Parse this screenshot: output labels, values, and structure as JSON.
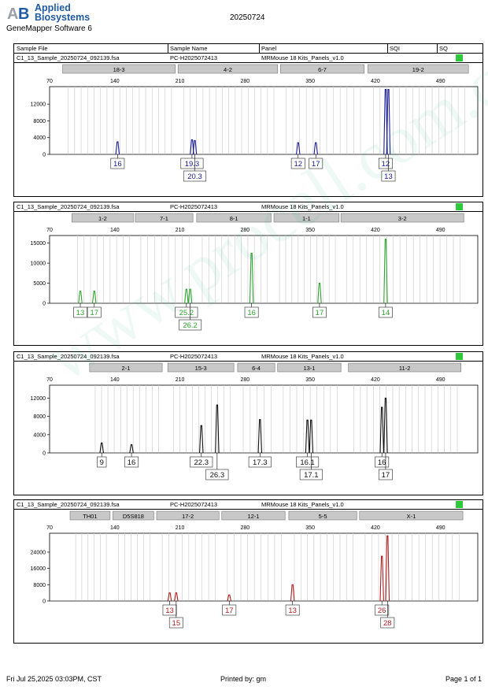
{
  "header": {
    "brand_line1": "Applied",
    "brand_line2": "Biosystems",
    "software": "GeneMapper Software 6",
    "date": "20250724",
    "columns": [
      "Sample File",
      "Sample Name",
      "Panel",
      "SQI",
      "SQ"
    ]
  },
  "footer": {
    "printed_at": "Fri Jul 25,2025 03:03PM, CST",
    "printed_by": "Printed by: gm",
    "page": "Page 1 of 1"
  },
  "watermark": "www.procell.com.cn",
  "panels": [
    {
      "sample_file": "C1_13_Sample_20250724_092139.fsa",
      "sample_name": "PC-H2025072413",
      "panel": "MRMouse 18 Kits_Panels_v1.0",
      "sq_color": "#2ec83a",
      "dye_color": "#1a1a9a",
      "markers": [
        {
          "name": "18-3",
          "start": 84,
          "end": 205
        },
        {
          "name": "4-2",
          "start": 208,
          "end": 315
        },
        {
          "name": "6-7",
          "start": 318,
          "end": 408
        },
        {
          "name": "19-2",
          "start": 412,
          "end": 520
        }
      ],
      "alleles": [
        {
          "label": "16",
          "x": 143,
          "height": 3000,
          "row": 0
        },
        {
          "label": "19.3",
          "x": 223,
          "height": 3500,
          "row": 0
        },
        {
          "label": "20.3",
          "x": 226,
          "height": 3300,
          "row": 1
        },
        {
          "label": "12",
          "x": 337,
          "height": 2800,
          "row": 0
        },
        {
          "label": "17",
          "x": 356,
          "height": 2800,
          "row": 0
        },
        {
          "label": "12",
          "x": 431,
          "height": 15500,
          "row": 0
        },
        {
          "label": "13",
          "x": 434,
          "height": 15500,
          "row": 1
        }
      ]
    },
    {
      "sample_file": "C1_13_Sample_20250724_092139.fsa",
      "sample_name": "PC-H2025072413",
      "panel": "MRMouse 18 Kits_Panels_v1.0",
      "sq_color": "#2ec83a",
      "dye_color": "#2ea32e",
      "markers": [
        {
          "name": "1-2",
          "start": 94,
          "end": 160
        },
        {
          "name": "7-1",
          "start": 162,
          "end": 224
        },
        {
          "name": "8-1",
          "start": 228,
          "end": 308
        },
        {
          "name": "1-1",
          "start": 311,
          "end": 381
        },
        {
          "name": "3-2",
          "start": 383,
          "end": 515
        }
      ],
      "alleles": [
        {
          "label": "13",
          "x": 103,
          "height": 3000,
          "row": 0
        },
        {
          "label": "17",
          "x": 118,
          "height": 3000,
          "row": 0
        },
        {
          "label": "25.2",
          "x": 217,
          "height": 3500,
          "row": 0
        },
        {
          "label": "26.2",
          "x": 221,
          "height": 3500,
          "row": 1
        },
        {
          "label": "16",
          "x": 287,
          "height": 12500,
          "row": 0
        },
        {
          "label": "17",
          "x": 360,
          "height": 5000,
          "row": 0
        },
        {
          "label": "14",
          "x": 431,
          "height": 16000,
          "row": 0
        }
      ]
    },
    {
      "sample_file": "C1_13_Sample_20250724_092139.fsa",
      "sample_name": "PC-H2025072413",
      "panel": "MRMouse 18 Kits_Panels_v1.0",
      "sq_color": "#2ec83a",
      "dye_color": "#111111",
      "markers": [
        {
          "name": "2-1",
          "start": 113,
          "end": 191
        },
        {
          "name": "15-3",
          "start": 197,
          "end": 268
        },
        {
          "name": "6-4",
          "start": 272,
          "end": 312
        },
        {
          "name": "13-1",
          "start": 315,
          "end": 383
        },
        {
          "name": "11-2",
          "start": 391,
          "end": 512
        }
      ],
      "alleles": [
        {
          "label": "9",
          "x": 126,
          "height": 2200,
          "row": 0
        },
        {
          "label": "16",
          "x": 158,
          "height": 1800,
          "row": 0
        },
        {
          "label": "22.3",
          "x": 233,
          "height": 6000,
          "row": 0
        },
        {
          "label": "26.3",
          "x": 250,
          "height": 10500,
          "row": 1
        },
        {
          "label": "17.3",
          "x": 296,
          "height": 7300,
          "row": 0
        },
        {
          "label": "16.1",
          "x": 347,
          "height": 7200,
          "row": 0
        },
        {
          "label": "17.1",
          "x": 351,
          "height": 7200,
          "row": 1
        },
        {
          "label": "16",
          "x": 427,
          "height": 10000,
          "row": 0
        },
        {
          "label": "17",
          "x": 431,
          "height": 12000,
          "row": 1
        }
      ]
    },
    {
      "sample_file": "C1_13_Sample_20250724_092139.fsa",
      "sample_name": "PC-H2025072413",
      "panel": "MRMouse 18 Kits_Panels_v1.0",
      "sq_color": "#2ec83a",
      "dye_color": "#b01e1e",
      "markers": [
        {
          "name": "TH01",
          "start": 92,
          "end": 135
        },
        {
          "name": "D5S818",
          "start": 138,
          "end": 182
        },
        {
          "name": "17-2",
          "start": 185,
          "end": 252
        },
        {
          "name": "12-1",
          "start": 255,
          "end": 323
        },
        {
          "name": "5-5",
          "start": 327,
          "end": 400
        },
        {
          "name": "X-1",
          "start": 403,
          "end": 514
        }
      ],
      "alleles": [
        {
          "label": "13",
          "x": 199,
          "height": 4000,
          "row": 0
        },
        {
          "label": "15",
          "x": 206,
          "height": 4000,
          "row": 1
        },
        {
          "label": "17",
          "x": 263,
          "height": 3000,
          "row": 0
        },
        {
          "label": "13",
          "x": 331,
          "height": 8000,
          "row": 0
        },
        {
          "label": "26",
          "x": 427,
          "height": 22000,
          "row": 0
        },
        {
          "label": "28",
          "x": 433,
          "height": 32000,
          "row": 1
        }
      ]
    }
  ],
  "chart_data": [
    {
      "type": "line",
      "title": "",
      "xlim": [
        70,
        530
      ],
      "xticks": [
        70,
        140,
        210,
        280,
        350,
        420,
        490
      ],
      "ylim": [
        0,
        15800
      ],
      "yticks": [
        0,
        4000,
        8000,
        12000
      ],
      "grid": true,
      "series": [
        {
          "x": [
            143,
            223,
            226,
            337,
            356,
            431,
            434
          ],
          "values": [
            3000,
            3500,
            3300,
            2800,
            2800,
            15500,
            15500
          ]
        }
      ]
    },
    {
      "type": "line",
      "title": "",
      "xlim": [
        70,
        530
      ],
      "xticks": [
        70,
        140,
        210,
        280,
        350,
        420,
        490
      ],
      "ylim": [
        0,
        16500
      ],
      "yticks": [
        0,
        5000,
        10000,
        15000
      ],
      "grid": true,
      "series": [
        {
          "x": [
            103,
            118,
            217,
            221,
            287,
            360,
            431
          ],
          "values": [
            3000,
            3000,
            3500,
            3500,
            12500,
            5000,
            16000
          ]
        }
      ]
    },
    {
      "type": "line",
      "title": "",
      "xlim": [
        70,
        530
      ],
      "xticks": [
        70,
        140,
        210,
        280,
        350,
        420,
        490
      ],
      "ylim": [
        0,
        14500
      ],
      "yticks": [
        0,
        4000,
        8000,
        12000
      ],
      "grid": true,
      "series": [
        {
          "x": [
            126,
            158,
            233,
            250,
            296,
            347,
            351,
            427,
            431
          ],
          "values": [
            2200,
            1800,
            6000,
            10500,
            7300,
            7200,
            7200,
            10000,
            12000
          ]
        }
      ]
    },
    {
      "type": "line",
      "title": "",
      "xlim": [
        70,
        530
      ],
      "xticks": [
        70,
        140,
        210,
        280,
        350,
        420,
        490
      ],
      "ylim": [
        0,
        32500
      ],
      "yticks": [
        0,
        8000,
        16000,
        24000
      ],
      "grid": true,
      "series": [
        {
          "x": [
            199,
            206,
            263,
            331,
            427,
            433
          ],
          "values": [
            4000,
            4000,
            3000,
            8000,
            22000,
            32000
          ]
        }
      ]
    }
  ]
}
